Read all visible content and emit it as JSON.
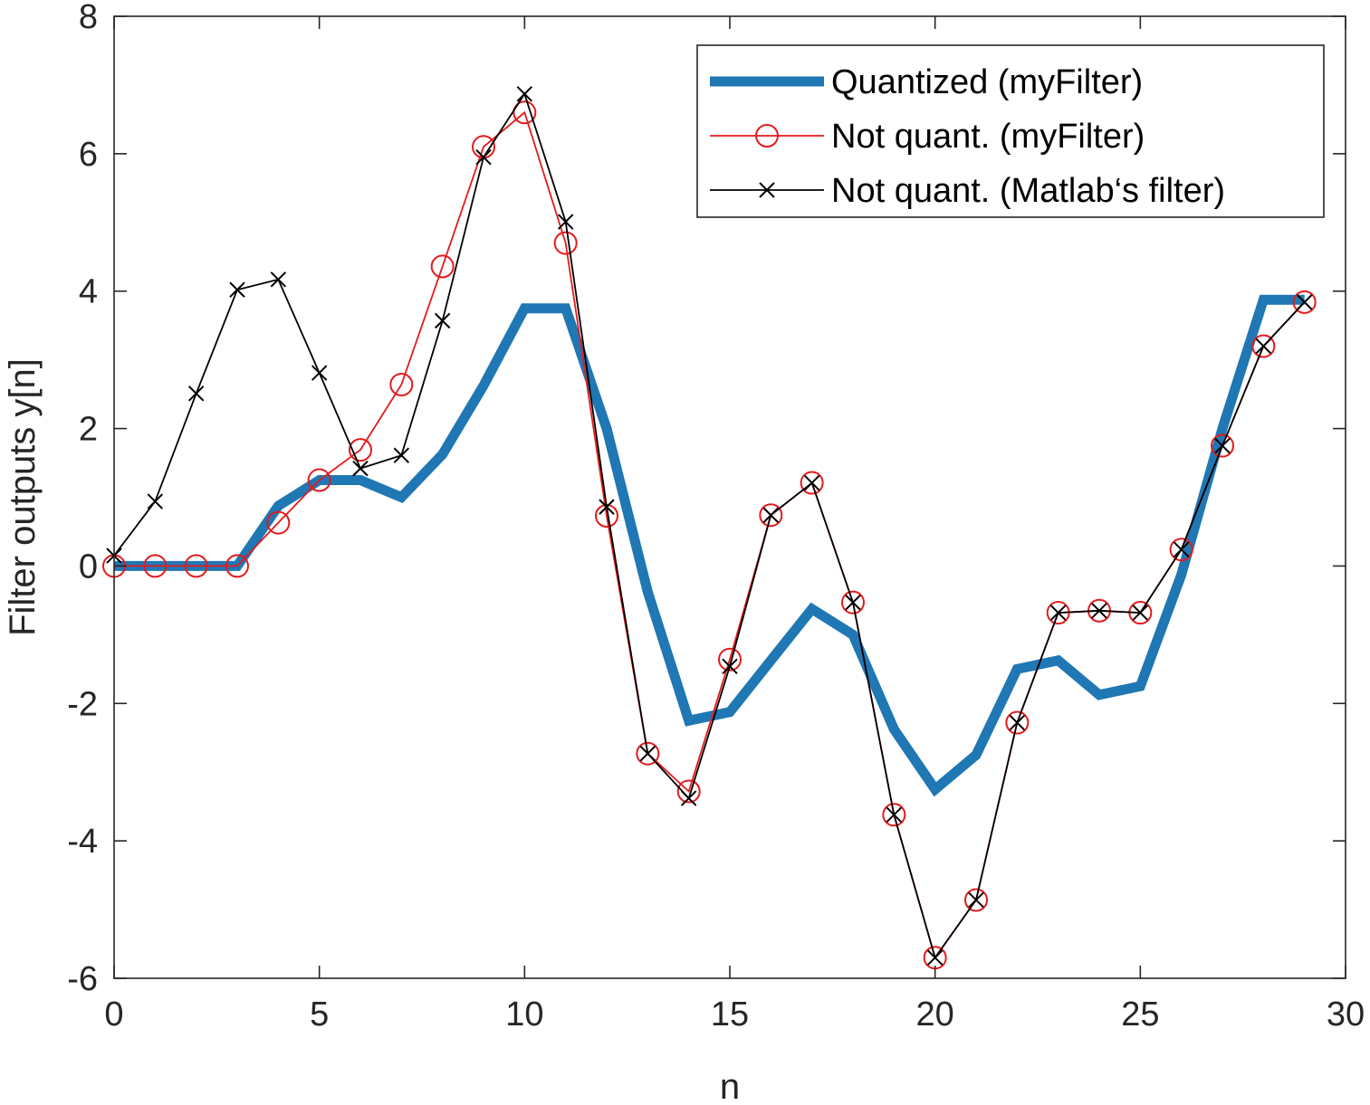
{
  "chart_data": {
    "type": "line",
    "title": "",
    "xlabel": "n",
    "ylabel": "Filter outputs y[n]",
    "xlim": [
      0,
      30
    ],
    "ylim": [
      -6,
      8
    ],
    "xticks": [
      0,
      5,
      10,
      15,
      20,
      25,
      30
    ],
    "xtick_labels": [
      "0",
      "5",
      "10",
      "15",
      "20",
      "25",
      "30"
    ],
    "yticks": [
      -6,
      -4,
      -2,
      0,
      2,
      4,
      6,
      8
    ],
    "ytick_labels": [
      "-6",
      "-4",
      "-2",
      "0",
      "2",
      "4",
      "6",
      "8"
    ],
    "grid": false,
    "legend_position": "top-right",
    "x": [
      0,
      1,
      2,
      3,
      4,
      5,
      6,
      7,
      8,
      9,
      10,
      11,
      12,
      13,
      14,
      15,
      16,
      17,
      18,
      19,
      20,
      21,
      22,
      23,
      24,
      25,
      26,
      27,
      28,
      29
    ],
    "series": [
      {
        "name": "Quantized (myFilter)",
        "color": "#1f77b4",
        "marker": "none",
        "values": [
          0,
          0,
          0,
          0,
          0.875,
          1.25,
          1.25,
          1.0,
          1.625,
          2.625,
          3.75,
          3.75,
          2.0,
          -0.375,
          -2.25,
          -2.125,
          -1.375,
          -0.625,
          -1.0,
          -2.375,
          -3.25,
          -2.75,
          -1.5,
          -1.375,
          -1.875,
          -1.75,
          -0.125,
          2.0,
          3.875,
          3.875
        ]
      },
      {
        "name": "Not quant. (myFilter)",
        "color": "#e41a1c",
        "marker": "circle",
        "values": [
          0,
          0,
          0,
          0,
          0.63,
          1.25,
          1.69,
          2.64,
          4.36,
          6.1,
          6.6,
          4.7,
          0.73,
          -2.73,
          -3.28,
          -1.36,
          0.74,
          1.21,
          -0.53,
          -3.62,
          -5.7,
          -4.86,
          -2.28,
          -0.68,
          -0.65,
          -0.68,
          0.24,
          1.75,
          3.2,
          3.84
        ]
      },
      {
        "name": "Not quant. (Matlab‘s filter)",
        "color": "#000000",
        "marker": "x",
        "values": [
          0.15,
          0.94,
          2.51,
          4.02,
          4.17,
          2.81,
          1.42,
          1.61,
          3.57,
          5.95,
          6.87,
          5.01,
          0.86,
          -2.73,
          -3.38,
          -1.46,
          0.74,
          1.21,
          -0.53,
          -3.62,
          -5.7,
          -4.86,
          -2.28,
          -0.68,
          -0.65,
          -0.68,
          0.24,
          1.75,
          3.2,
          3.84
        ]
      }
    ]
  }
}
